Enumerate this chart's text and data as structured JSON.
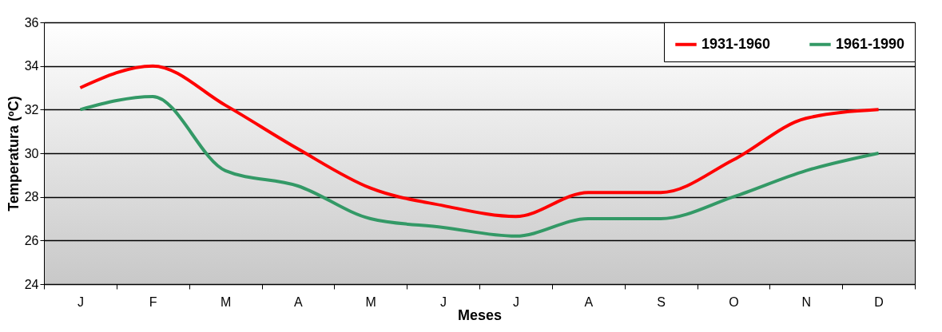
{
  "chart_data": {
    "type": "line",
    "xlabel": "Meses",
    "ylabel": "Temperatura (ºC)",
    "categories": [
      "J",
      "F",
      "M",
      "A",
      "M",
      "J",
      "J",
      "A",
      "S",
      "O",
      "N",
      "D"
    ],
    "series": [
      {
        "name": "1931-1960",
        "color": "#ff0000",
        "values": [
          33,
          34,
          32.2,
          30.2,
          28.4,
          27.6,
          27.1,
          28.2,
          28.2,
          29.7,
          31.6,
          32
        ]
      },
      {
        "name": "1961-1990",
        "color": "#339966",
        "values": [
          32,
          32.6,
          29.2,
          28.5,
          27,
          26.6,
          26.2,
          27,
          27,
          28,
          29.2,
          30
        ]
      }
    ],
    "ylim": [
      24,
      36
    ],
    "yticks": [
      24,
      26,
      28,
      30,
      32,
      34,
      36
    ],
    "grid": "y",
    "legend": "top right",
    "marker": "none",
    "line_style": "solid"
  }
}
